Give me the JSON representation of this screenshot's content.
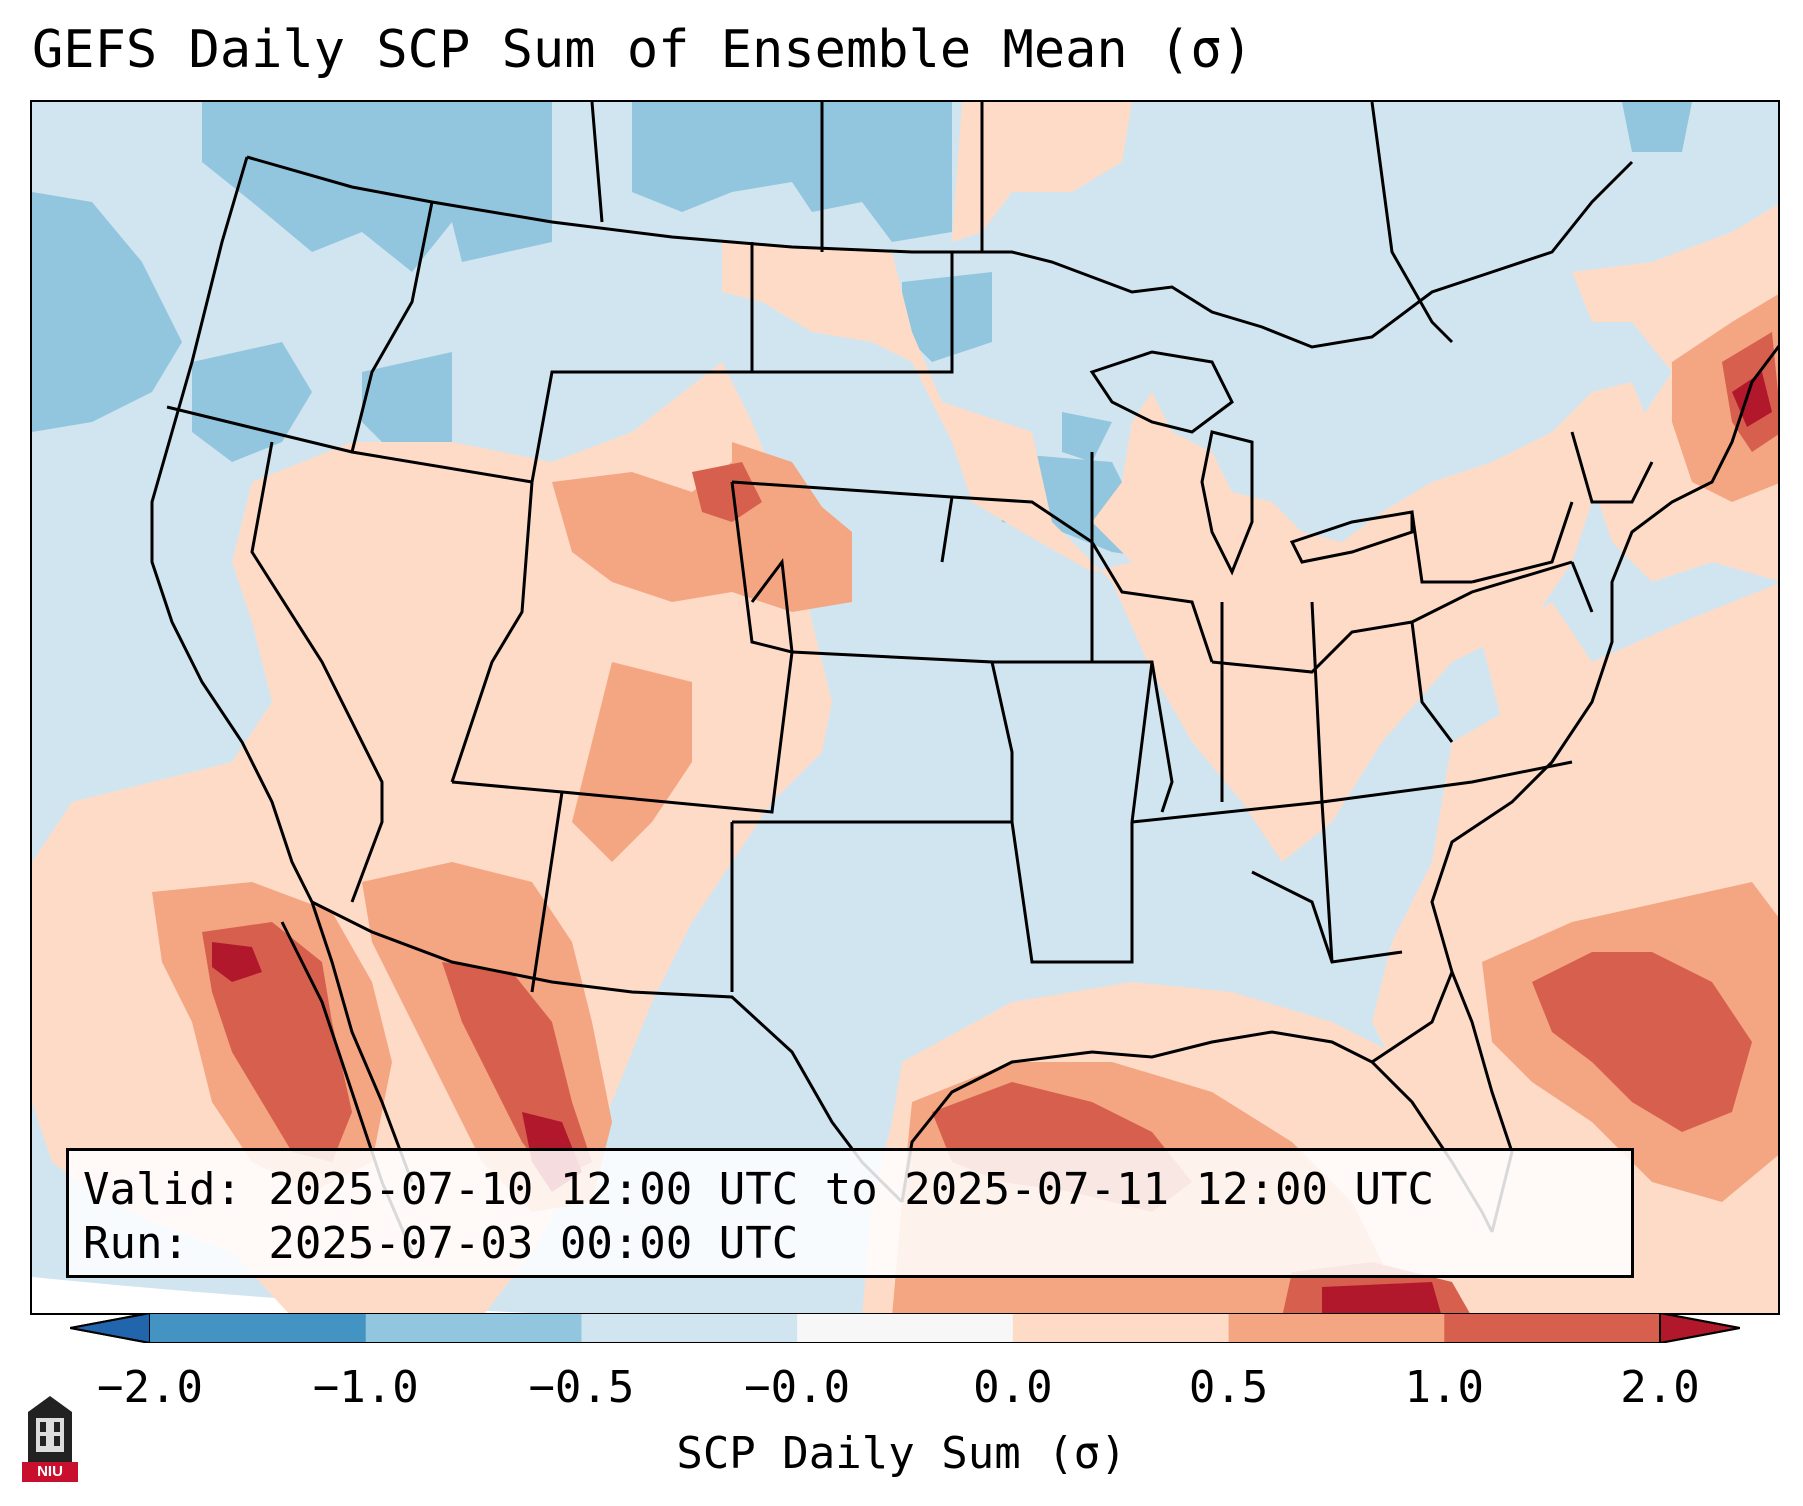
{
  "title": "GEFS Daily SCP Sum of Ensemble Mean (σ)",
  "info_box": {
    "valid_line": "Valid: 2025-07-10 12:00 UTC to 2025-07-11 12:00 UTC",
    "run_line": "Run:   2025-07-03 00:00 UTC"
  },
  "colorbar": {
    "label": "SCP Daily Sum (σ)",
    "ticks": [
      "−2.0",
      "−1.0",
      "−0.5",
      "−0.0",
      "0.0",
      "0.5",
      "1.0",
      "2.0"
    ],
    "colors": [
      "#4393c3",
      "#92c5de",
      "#d1e5f0",
      "#f7f7f7",
      "#fddbc7",
      "#f4a582",
      "#d6604d",
      "#b2182b"
    ],
    "under_color": "#2166ac",
    "over_color": "#b2182b"
  },
  "logo": {
    "text": "NIU",
    "accent": "#c8102e"
  },
  "chart_data": {
    "type": "heatmap",
    "title": "GEFS Daily SCP Sum of Ensemble Mean (σ)",
    "colorbar_label": "SCP Daily Sum (σ)",
    "bounds": [
      -2.0,
      -1.0,
      -0.5,
      -0.0,
      0.0,
      0.5,
      1.0,
      2.0
    ],
    "regions": [
      {
        "name": "background",
        "value": -0.25
      },
      {
        "name": "northern-plains-blue",
        "value": -0.75
      },
      {
        "name": "pacific-northwest-blue",
        "value": -0.75
      },
      {
        "name": "upper-midwest-blue",
        "value": -0.75
      },
      {
        "name": "northern-rockies-light-red",
        "value": 0.25
      },
      {
        "name": "central-plains-light-red",
        "value": 0.25
      },
      {
        "name": "southern-plains-light-red",
        "value": 0.25
      },
      {
        "name": "new-england-red",
        "value": 0.75
      },
      {
        "name": "sw-arizona-dark-red",
        "value": 1.5
      },
      {
        "name": "baja-dark-red",
        "value": 1.5
      },
      {
        "name": "gulf-of-mexico-red",
        "value": 1.5
      },
      {
        "name": "western-atlantic-red",
        "value": 0.75
      },
      {
        "name": "cuba-region-dark-red",
        "value": 1.5
      }
    ]
  }
}
